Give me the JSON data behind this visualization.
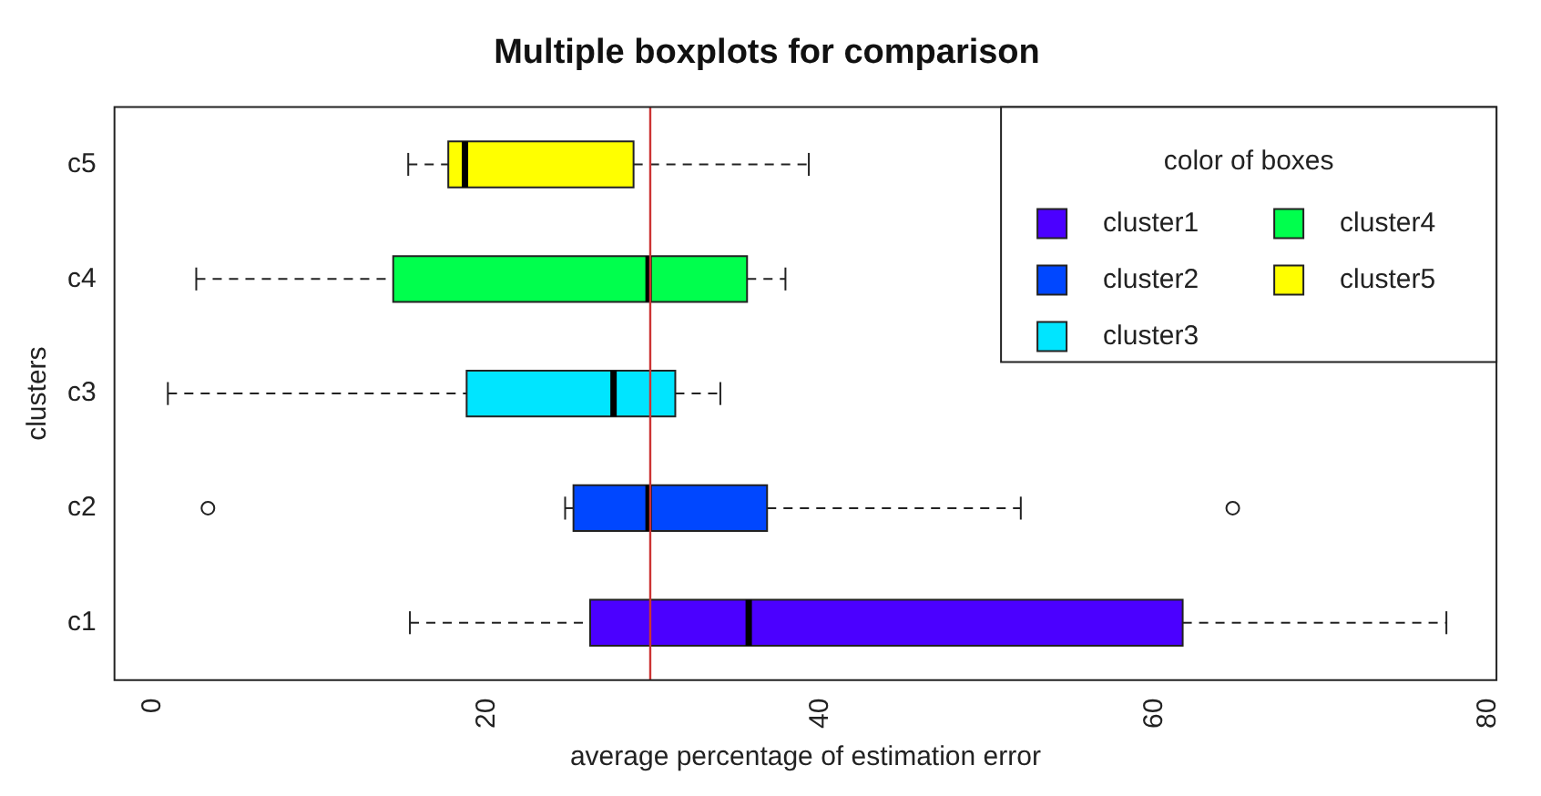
{
  "chart_data": {
    "type": "box",
    "orientation": "horizontal",
    "title": "Multiple boxplots for comparison",
    "xlabel": "average percentage of estimation error",
    "ylabel": "clusters",
    "legend_title": "color of boxes",
    "categories": [
      "c5",
      "c4",
      "c3",
      "c2",
      "c1"
    ],
    "series": [
      {
        "name": "cluster1",
        "color": "#4b00ff",
        "boxes": [
          null,
          null,
          null,
          null,
          {
            "low": 15.4,
            "q1": 26.2,
            "median": 35.7,
            "q3": 61.7,
            "high": 77.5
          }
        ]
      },
      {
        "name": "cluster2",
        "color": "#0047ff",
        "boxes": [
          null,
          null,
          null,
          {
            "low": 24.7,
            "q1": 25.2,
            "median": 29.7,
            "q3": 36.8,
            "high": 52.0,
            "outliers": [
              3.3,
              64.7
            ]
          },
          null
        ]
      },
      {
        "name": "cluster3",
        "color": "#00e5ff",
        "boxes": [
          null,
          null,
          {
            "low": 0.9,
            "q1": 18.8,
            "median": 27.6,
            "q3": 31.3,
            "high": 34.0
          },
          null,
          null
        ]
      },
      {
        "name": "cluster4",
        "color": "#00ff4d",
        "boxes": [
          null,
          {
            "low": 2.6,
            "q1": 14.4,
            "median": 29.7,
            "q3": 35.6,
            "high": 37.9
          },
          null,
          null,
          null
        ]
      },
      {
        "name": "cluster5",
        "color": "#ffff00",
        "boxes": [
          {
            "low": 15.3,
            "q1": 17.7,
            "median": 18.7,
            "q3": 28.8,
            "high": 39.3
          },
          null,
          null,
          null,
          null
        ]
      }
    ],
    "xlim": [
      -2.3,
      80.5
    ],
    "xticks": [
      0,
      20,
      40,
      60,
      80
    ],
    "ref_lines": [
      {
        "axis": "x",
        "value": 29.8,
        "color": "#cc3333"
      }
    ],
    "legend": "top right",
    "grid": false
  }
}
